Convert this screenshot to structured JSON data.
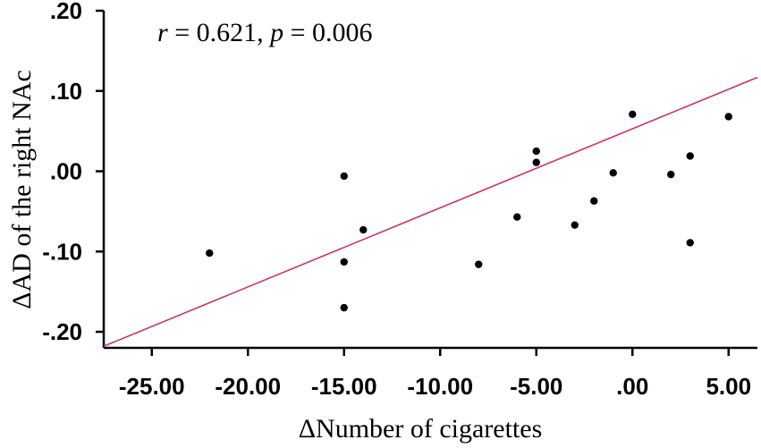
{
  "chart_data": {
    "type": "scatter",
    "annotation": {
      "r_symbol": "r",
      "r_text": " = 0.621, ",
      "p_symbol": "p",
      "p_text": " = 0.006"
    },
    "xlabel": "ΔNumber of cigarettes",
    "ylabel": "ΔAD of the right NAc",
    "xlim": [
      -27.5,
      6.5
    ],
    "ylim": [
      -0.22,
      0.2
    ],
    "xticks": [
      -25,
      -20,
      -15,
      -10,
      -5,
      0,
      5
    ],
    "xtick_labels": [
      "-25.00",
      "-20.00",
      "-15.00",
      "-10.00",
      "-5.00",
      ".00",
      "5.00"
    ],
    "yticks": [
      -0.2,
      -0.1,
      0.0,
      0.1,
      0.2
    ],
    "ytick_labels": [
      "-.20",
      "-.10",
      ".00",
      ".10",
      ".20"
    ],
    "grid": false,
    "colors": {
      "points": "#000000",
      "fit_line": "#cc3366"
    },
    "points": [
      {
        "x": -22,
        "y": -0.102
      },
      {
        "x": -15,
        "y": -0.006
      },
      {
        "x": -15,
        "y": -0.113
      },
      {
        "x": -15,
        "y": -0.17
      },
      {
        "x": -14,
        "y": -0.073
      },
      {
        "x": -8,
        "y": -0.116
      },
      {
        "x": -6,
        "y": -0.057
      },
      {
        "x": -5,
        "y": 0.025
      },
      {
        "x": -5,
        "y": 0.011
      },
      {
        "x": -3,
        "y": -0.067
      },
      {
        "x": -2,
        "y": -0.037
      },
      {
        "x": -1,
        "y": -0.002
      },
      {
        "x": 0,
        "y": 0.071
      },
      {
        "x": 2,
        "y": -0.004
      },
      {
        "x": 3,
        "y": 0.019
      },
      {
        "x": 3,
        "y": -0.089
      },
      {
        "x": 5,
        "y": 0.068
      }
    ],
    "fit_line": {
      "x": [
        -27.5,
        6.5
      ],
      "y": [
        -0.218,
        0.117
      ]
    }
  }
}
